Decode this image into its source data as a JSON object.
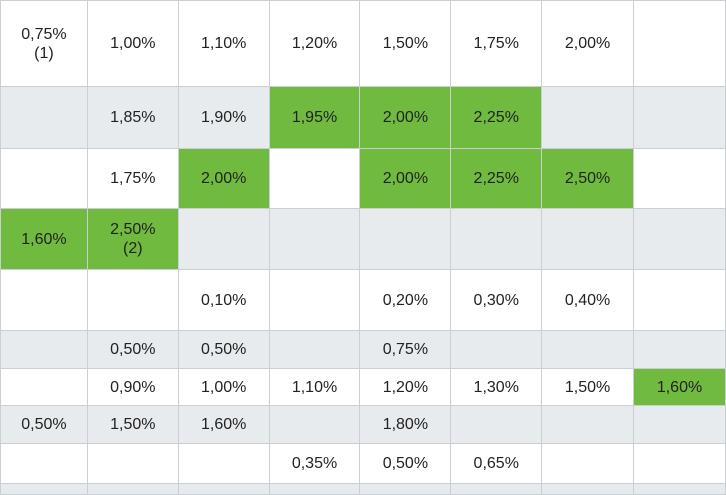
{
  "highlight_color": "#70bb3f",
  "band_color": "#e7ebee",
  "rows": [
    {
      "band": false,
      "cells": [
        {
          "value": "0,75%",
          "note": "(1)",
          "hl": false
        },
        {
          "value": "1,00%",
          "note": "",
          "hl": false
        },
        {
          "value": "1,10%",
          "note": "",
          "hl": false
        },
        {
          "value": "1,20%",
          "note": "",
          "hl": false
        },
        {
          "value": "1,50%",
          "note": "",
          "hl": false
        },
        {
          "value": "1,75%",
          "note": "",
          "hl": false
        },
        {
          "value": "2,00%",
          "note": "",
          "hl": false
        },
        {
          "value": "",
          "note": "",
          "hl": false
        }
      ]
    },
    {
      "band": true,
      "cells": [
        {
          "value": "",
          "note": "",
          "hl": false
        },
        {
          "value": "1,85%",
          "note": "",
          "hl": false
        },
        {
          "value": "1,90%",
          "note": "",
          "hl": false
        },
        {
          "value": "1,95%",
          "note": "",
          "hl": true
        },
        {
          "value": "2,00%",
          "note": "",
          "hl": true
        },
        {
          "value": "2,25%",
          "note": "",
          "hl": true
        },
        {
          "value": "",
          "note": "",
          "hl": false
        },
        {
          "value": "",
          "note": "",
          "hl": false
        }
      ]
    },
    {
      "band": false,
      "cells": [
        {
          "value": "",
          "note": "",
          "hl": false
        },
        {
          "value": "1,75%",
          "note": "",
          "hl": false
        },
        {
          "value": "2,00%",
          "note": "",
          "hl": true
        },
        {
          "value": "",
          "note": "",
          "hl": false
        },
        {
          "value": "2,00%",
          "note": "",
          "hl": true
        },
        {
          "value": "2,25%",
          "note": "",
          "hl": true
        },
        {
          "value": "2,50%",
          "note": "",
          "hl": true
        },
        {
          "value": "",
          "note": "",
          "hl": false
        }
      ]
    },
    {
      "band": true,
      "cells": [
        {
          "value": "1,60%",
          "note": "",
          "hl": true
        },
        {
          "value": "2,50%",
          "note": "(2)",
          "hl": true
        },
        {
          "value": "",
          "note": "",
          "hl": false
        },
        {
          "value": "",
          "note": "",
          "hl": false
        },
        {
          "value": "",
          "note": "",
          "hl": false
        },
        {
          "value": "",
          "note": "",
          "hl": false
        },
        {
          "value": "",
          "note": "",
          "hl": false
        },
        {
          "value": "",
          "note": "",
          "hl": false
        }
      ]
    },
    {
      "band": false,
      "cells": [
        {
          "value": "",
          "note": "",
          "hl": false
        },
        {
          "value": "",
          "note": "",
          "hl": false
        },
        {
          "value": "0,10%",
          "note": "",
          "hl": false
        },
        {
          "value": "",
          "note": "",
          "hl": false
        },
        {
          "value": "0,20%",
          "note": "",
          "hl": false
        },
        {
          "value": "0,30%",
          "note": "",
          "hl": false
        },
        {
          "value": "0,40%",
          "note": "",
          "hl": false
        },
        {
          "value": "",
          "note": "",
          "hl": false
        }
      ]
    },
    {
      "band": true,
      "cells": [
        {
          "value": "",
          "note": "",
          "hl": false
        },
        {
          "value": "0,50%",
          "note": "",
          "hl": false
        },
        {
          "value": "0,50%",
          "note": "",
          "hl": false
        },
        {
          "value": "",
          "note": "",
          "hl": false
        },
        {
          "value": "0,75%",
          "note": "",
          "hl": false
        },
        {
          "value": "",
          "note": "",
          "hl": false
        },
        {
          "value": "",
          "note": "",
          "hl": false
        },
        {
          "value": "",
          "note": "",
          "hl": false
        }
      ]
    },
    {
      "band": false,
      "cells": [
        {
          "value": "",
          "note": "",
          "hl": false
        },
        {
          "value": "0,90%",
          "note": "",
          "hl": false
        },
        {
          "value": "1,00%",
          "note": "",
          "hl": false
        },
        {
          "value": "1,10%",
          "note": "",
          "hl": false
        },
        {
          "value": "1,20%",
          "note": "",
          "hl": false
        },
        {
          "value": "1,30%",
          "note": "",
          "hl": false
        },
        {
          "value": "1,50%",
          "note": "",
          "hl": false
        },
        {
          "value": "1,60%",
          "note": "",
          "hl": true
        }
      ]
    },
    {
      "band": true,
      "cells": [
        {
          "value": "0,50%",
          "note": "",
          "hl": false
        },
        {
          "value": "1,50%",
          "note": "",
          "hl": false
        },
        {
          "value": "1,60%",
          "note": "",
          "hl": false
        },
        {
          "value": "",
          "note": "",
          "hl": false
        },
        {
          "value": "1,80%",
          "note": "",
          "hl": false
        },
        {
          "value": "",
          "note": "",
          "hl": false
        },
        {
          "value": "",
          "note": "",
          "hl": false
        },
        {
          "value": "",
          "note": "",
          "hl": false
        }
      ]
    },
    {
      "band": false,
      "cells": [
        {
          "value": "",
          "note": "",
          "hl": false
        },
        {
          "value": "",
          "note": "",
          "hl": false
        },
        {
          "value": "",
          "note": "",
          "hl": false
        },
        {
          "value": "0,35%",
          "note": "",
          "hl": false
        },
        {
          "value": "0,50%",
          "note": "",
          "hl": false
        },
        {
          "value": "0,65%",
          "note": "",
          "hl": false
        },
        {
          "value": "",
          "note": "",
          "hl": false
        },
        {
          "value": "",
          "note": "",
          "hl": false
        }
      ]
    },
    {
      "band": true,
      "cells": [
        {
          "value": "",
          "note": "",
          "hl": false
        },
        {
          "value": "",
          "note": "",
          "hl": false
        },
        {
          "value": "",
          "note": "",
          "hl": false
        },
        {
          "value": "",
          "note": "",
          "hl": false
        },
        {
          "value": "",
          "note": "",
          "hl": false
        },
        {
          "value": "",
          "note": "",
          "hl": false
        },
        {
          "value": "",
          "note": "",
          "hl": false
        },
        {
          "value": "",
          "note": "",
          "hl": false
        }
      ]
    }
  ]
}
